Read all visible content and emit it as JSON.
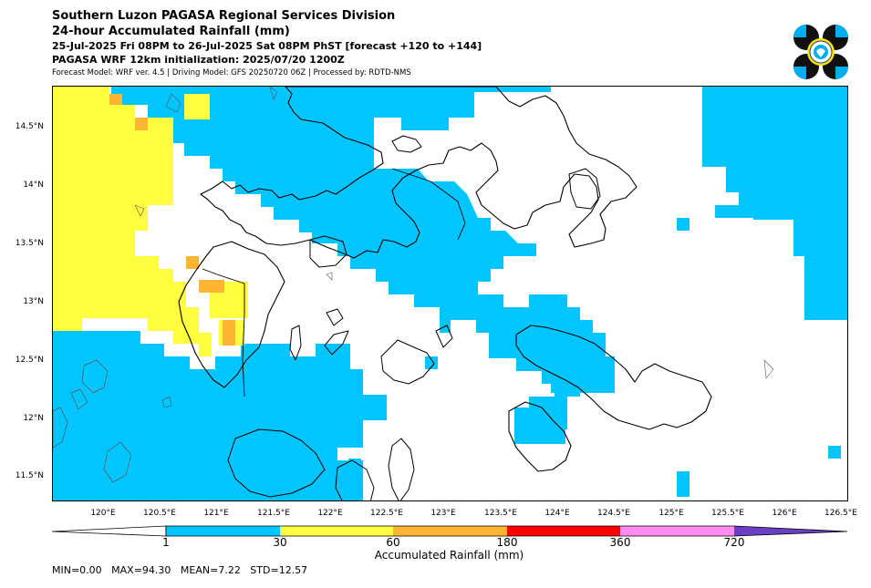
{
  "header": {
    "line1": "Southern Luzon PAGASA Regional Services Division",
    "line2": "24-hour Accumulated Rainfall (mm)",
    "line3": "25-Jul-2025 Fri 08PM to 26-Jul-2025 Sat 08PM PhST [forecast +120 to +144]",
    "line4": "PAGASA WRF 12km initialization: 2025/07/20 1200Z",
    "line5": "Forecast Model: WRF ver. 4.5 | Driving Model: GFS 20250720 06Z | Processed by: RDTD-NMS"
  },
  "map": {
    "lon_range": [
      119.55,
      126.55
    ],
    "lat_range": [
      11.3,
      14.85
    ],
    "y_ticks": [
      "14.5°N",
      "14°N",
      "13.5°N",
      "13°N",
      "12.5°N",
      "12°N",
      "11.5°N"
    ],
    "x_ticks": [
      "120°E",
      "120.5°E",
      "121°E",
      "121.5°E",
      "122°E",
      "122.5°E",
      "123°E",
      "123.5°E",
      "124°E",
      "124.5°E",
      "125°E",
      "125.5°E",
      "126°E",
      "126.5°E"
    ]
  },
  "colorbar": {
    "title": "Accumulated Rainfall (mm)",
    "labels": [
      "1",
      "30",
      "60",
      "180",
      "360",
      "720"
    ],
    "colors": [
      "#00c5ff",
      "#ffff40",
      "#ffb432",
      "#ff0000",
      "#ff8cf0",
      "#6a3fc4"
    ]
  },
  "stats": "MIN=0.00   MAX=94.30   MEAN=7.22   STD=12.57",
  "colors": {
    "land_outline": "#000000",
    "minor_outline": "#555555"
  }
}
